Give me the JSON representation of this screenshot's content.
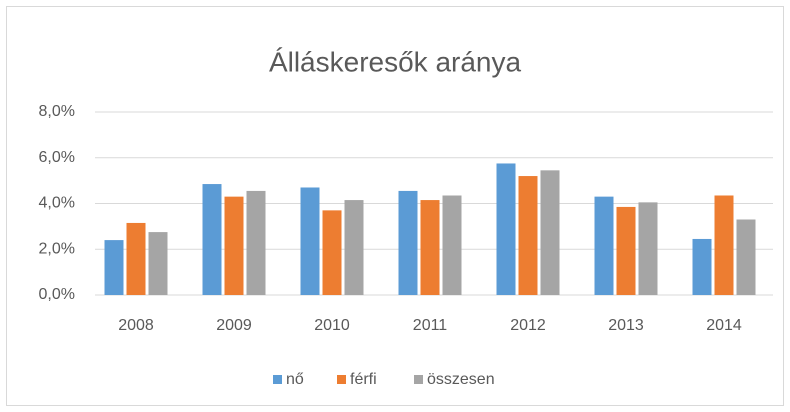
{
  "chart_data": {
    "type": "bar",
    "title": "Álláskeresők aránya",
    "categories": [
      "2008",
      "2009",
      "2010",
      "2011",
      "2012",
      "2013",
      "2014"
    ],
    "series": [
      {
        "name": "nő",
        "color": "#5b9bd5",
        "values": [
          2.4,
          4.85,
          4.7,
          4.55,
          5.75,
          4.3,
          2.45
        ]
      },
      {
        "name": "férfi",
        "color": "#ed7d31",
        "values": [
          3.15,
          4.3,
          3.7,
          4.15,
          5.2,
          3.85,
          4.35
        ]
      },
      {
        "name": "összesen",
        "color": "#a5a5a5",
        "values": [
          2.75,
          4.55,
          4.15,
          4.35,
          5.45,
          4.05,
          3.3
        ]
      }
    ],
    "ylim": [
      0,
      8
    ],
    "yticks": [
      {
        "value": 0,
        "label": "0,0%"
      },
      {
        "value": 2,
        "label": "2,0%"
      },
      {
        "value": 4,
        "label": "4,0%"
      },
      {
        "value": 6,
        "label": "6,0%"
      },
      {
        "value": 8,
        "label": "8,0%"
      }
    ],
    "grid": true,
    "legend": "bottom"
  }
}
